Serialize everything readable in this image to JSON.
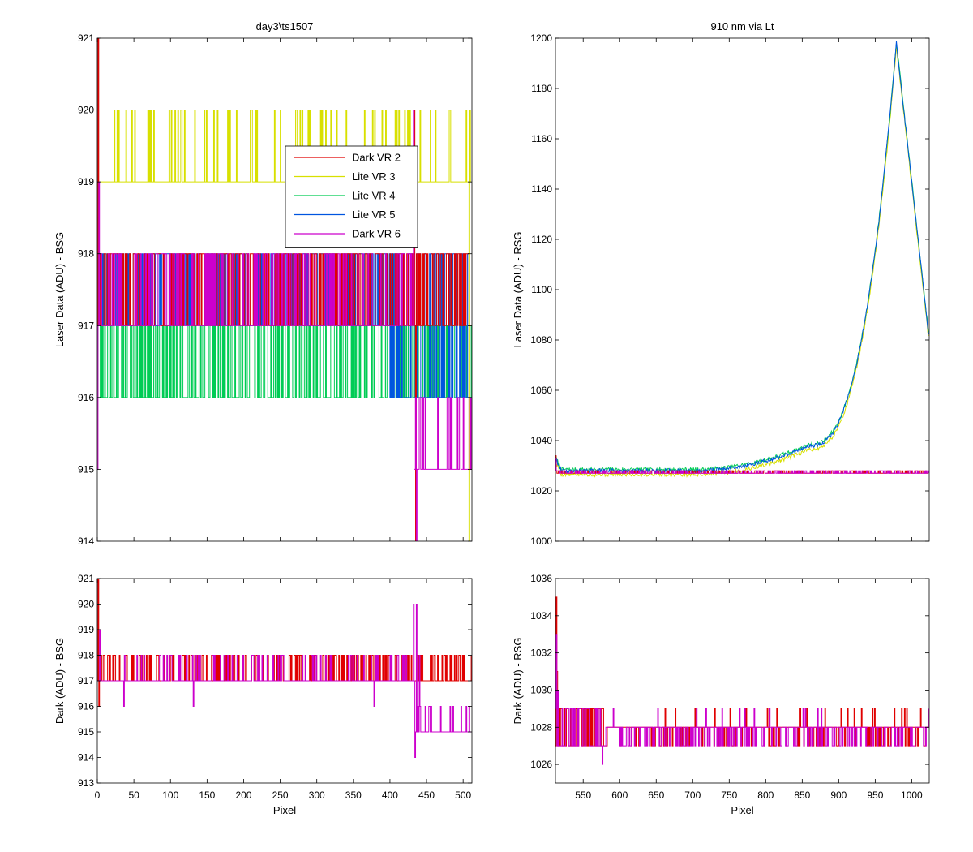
{
  "chart_data": [
    {
      "id": "tl",
      "type": "line",
      "title": "day3\\ts1507",
      "xlabel": "",
      "ylabel": "Laser Data (ADU) - BSG",
      "xlim": [
        0,
        512
      ],
      "ylim": [
        914,
        921
      ],
      "xticks": [],
      "yticks": [
        914,
        915,
        916,
        917,
        918,
        919,
        920,
        921
      ],
      "legend": {
        "position": "upper-center",
        "entries": [
          {
            "label": "Dark VR 2",
            "color": "#e00000"
          },
          {
            "label": "Lite VR 3",
            "color": "#d8e000"
          },
          {
            "label": "Lite VR 4",
            "color": "#00cc55"
          },
          {
            "label": "Lite VR 5",
            "color": "#0055e0"
          },
          {
            "label": "Dark VR 6",
            "color": "#cc00cc"
          }
        ]
      },
      "series": [
        {
          "name": "Lite VR 4",
          "color": "#00cc55",
          "pattern": "noise",
          "base": 916,
          "high": 917,
          "frac": 0.5,
          "x_start": 0,
          "x_end": 512,
          "seed": 11,
          "spikes": [
            [
              0,
              921
            ],
            [
              2,
              916
            ]
          ]
        },
        {
          "name": "Lite VR 5",
          "color": "#0055e0",
          "pattern": "noise",
          "base": 917,
          "high": 918,
          "frac": 0.5,
          "x_start": 0,
          "x_end": 512,
          "seed": 23,
          "segments": [
            [
              400,
              512,
              916,
              918
            ]
          ],
          "spikes": [
            [
              1,
              918.5
            ],
            [
              3,
              917.5
            ]
          ]
        },
        {
          "name": "Lite VR 3",
          "color": "#d8e000",
          "pattern": "noise",
          "base": 919,
          "high": 920,
          "frac": 0.12,
          "x_start": 0,
          "x_end": 512,
          "seed": 37,
          "spikes": [
            [
              508,
              914
            ],
            [
              509,
              920
            ]
          ]
        },
        {
          "name": "Dark VR 2",
          "color": "#e00000",
          "pattern": "noise",
          "base": 917,
          "high": 918,
          "frac": 0.5,
          "x_start": 0,
          "x_end": 512,
          "seed": 51,
          "spikes": [
            [
              1,
              921
            ],
            [
              433,
              920
            ],
            [
              435,
              914
            ]
          ]
        },
        {
          "name": "Dark VR 6",
          "color": "#cc00cc",
          "pattern": "noise",
          "base": 917,
          "high": 918,
          "frac": 0.3,
          "x_start": 0,
          "x_end": 512,
          "seed": 67,
          "segments": [
            [
              433,
              512,
              915,
              916
            ]
          ],
          "spikes": [
            [
              0,
              915
            ],
            [
              2,
              919
            ],
            [
              432,
              920
            ],
            [
              436,
              914
            ],
            [
              440,
              916
            ]
          ]
        }
      ]
    },
    {
      "id": "tr",
      "type": "line",
      "title": "910 nm via Lt",
      "xlabel": "",
      "ylabel": "Laser Data (ADU) - RSG",
      "xlim": [
        512,
        1024
      ],
      "ylim": [
        1000,
        1200
      ],
      "xticks": [],
      "yticks": [
        1000,
        1020,
        1040,
        1060,
        1080,
        1100,
        1120,
        1140,
        1160,
        1180,
        1200
      ],
      "series": [
        {
          "name": "Lite VR 3",
          "color": "#d8e000",
          "pattern": "peak",
          "offset": -1.5,
          "seed": 5
        },
        {
          "name": "Lite VR 4",
          "color": "#00cc55",
          "pattern": "peak",
          "offset": 0.5,
          "seed": 7
        },
        {
          "name": "Lite VR 5",
          "color": "#0055e0",
          "pattern": "peak",
          "offset": 0,
          "seed": 9,
          "gap": [
            958,
            974
          ]
        },
        {
          "name": "Dark VR 2",
          "color": "#e00000",
          "pattern": "noise",
          "base": 1027,
          "high": 1028,
          "frac": 0.35,
          "x_start": 512,
          "x_end": 1024,
          "seed": 71,
          "spikes": [
            [
              512,
              1034
            ]
          ]
        },
        {
          "name": "Dark VR 6",
          "color": "#cc00cc",
          "pattern": "noise",
          "base": 1027,
          "high": 1028,
          "frac": 0.35,
          "x_start": 512,
          "x_end": 1024,
          "seed": 83,
          "spikes": [
            [
              512,
              1033
            ]
          ]
        }
      ]
    },
    {
      "id": "bl",
      "type": "line",
      "title": "",
      "xlabel": "Pixel",
      "ylabel": "Dark (ADU) - BSG",
      "xlim": [
        0,
        512
      ],
      "ylim": [
        913,
        921
      ],
      "xticks": [
        0,
        50,
        100,
        150,
        200,
        250,
        300,
        350,
        400,
        450,
        500
      ],
      "yticks": [
        913,
        914,
        915,
        916,
        917,
        918,
        919,
        920,
        921
      ],
      "series": [
        {
          "name": "Dark VR 2",
          "color": "#e00000",
          "pattern": "noise",
          "base": 917,
          "high": 918,
          "frac": 0.35,
          "x_start": 0,
          "x_end": 512,
          "seed": 91,
          "spikes": [
            [
              1,
              921
            ],
            [
              2,
              916
            ]
          ]
        },
        {
          "name": "Dark VR 6",
          "color": "#cc00cc",
          "pattern": "noise",
          "base": 917,
          "high": 918,
          "frac": 0.12,
          "x_start": 0,
          "x_end": 512,
          "seed": 97,
          "segments": [
            [
              435,
              512,
              915,
              916
            ]
          ],
          "spikes": [
            [
              3,
              919
            ],
            [
              36,
              916
            ],
            [
              131,
              916
            ],
            [
              378,
              916
            ],
            [
              432,
              920
            ],
            [
              434,
              914
            ],
            [
              436,
              920
            ],
            [
              438,
              916
            ],
            [
              440,
              918
            ]
          ]
        }
      ]
    },
    {
      "id": "br",
      "type": "line",
      "title": "",
      "xlabel": "Pixel",
      "ylabel": "Dark (ADU) - RSG",
      "xlim": [
        512,
        1024
      ],
      "ylim": [
        1025,
        1036
      ],
      "xticks": [
        550,
        600,
        650,
        700,
        750,
        800,
        850,
        900,
        950,
        1000
      ],
      "yticks": [
        1026,
        1028,
        1030,
        1032,
        1034,
        1036
      ],
      "series": [
        {
          "name": "Dark VR 2",
          "color": "#e00000",
          "pattern": "noise",
          "base": 1028,
          "high": 1029,
          "low": 1027,
          "frac": 0.05,
          "lowfrac": 0.2,
          "x_start": 512,
          "x_end": 1024,
          "seed": 101,
          "segments": [
            [
              512,
              580,
              1027,
              1029
            ]
          ],
          "spikes": [
            [
              513,
              1035
            ],
            [
              514,
              1031
            ],
            [
              516,
              1030
            ],
            [
              730,
              1029
            ],
            [
              815,
              1029
            ],
            [
              912,
              1029
            ],
            [
              946,
              1029
            ],
            [
              976,
              1029
            ],
            [
              986,
              1029
            ]
          ]
        },
        {
          "name": "Dark VR 6",
          "color": "#cc00cc",
          "pattern": "noise",
          "base": 1028,
          "high": 1029,
          "low": 1027,
          "frac": 0.03,
          "lowfrac": 0.3,
          "x_start": 512,
          "x_end": 1024,
          "seed": 113,
          "segments": [
            [
              512,
              580,
              1027,
              1029
            ]
          ],
          "spikes": [
            [
              513,
              1033
            ],
            [
              515,
              1030
            ],
            [
              576,
              1026
            ],
            [
              652,
              1029
            ],
            [
              718,
              1029
            ]
          ]
        }
      ]
    }
  ]
}
